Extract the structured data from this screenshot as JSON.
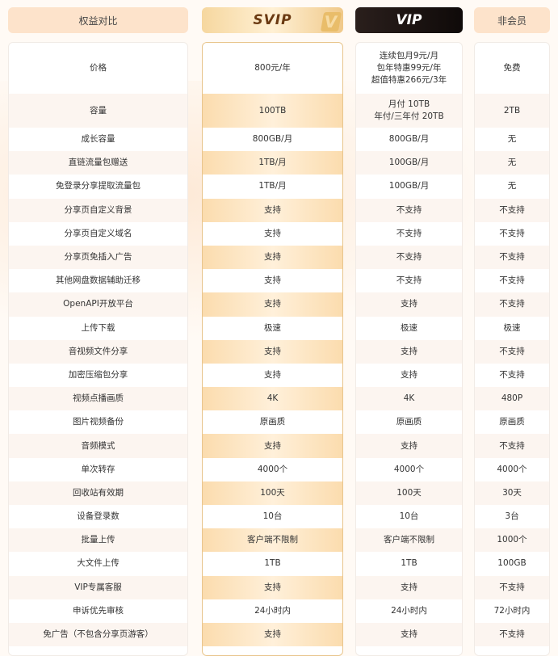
{
  "headers": {
    "features": "权益对比",
    "svip": "SVIP",
    "vip": "VIP",
    "free": "非会员"
  },
  "svip_logo_letter": "V",
  "accent_colors": {
    "svip": "#f6d79f",
    "vip": "#1a1210",
    "header": "#fde3cb"
  },
  "rows": [
    {
      "feature": "价格",
      "svip": "800元/年",
      "vip": "连续包月9元/月\n包年特惠99元/年\n超值特惠266元/3年",
      "free": "免费"
    },
    {
      "feature": "容量",
      "svip": "100TB",
      "vip": "月付 10TB\n年付/三年付 20TB",
      "free": "2TB"
    },
    {
      "feature": "成长容量",
      "svip": "800GB/月",
      "vip": "800GB/月",
      "free": "无"
    },
    {
      "feature": "直链流量包赠送",
      "svip": "1TB/月",
      "vip": "100GB/月",
      "free": "无"
    },
    {
      "feature": "免登录分享提取流量包",
      "svip": "1TB/月",
      "vip": "100GB/月",
      "free": "无"
    },
    {
      "feature": "分享页自定义背景",
      "svip": "支持",
      "vip": "不支持",
      "free": "不支持"
    },
    {
      "feature": "分享页自定义域名",
      "svip": "支持",
      "vip": "不支持",
      "free": "不支持"
    },
    {
      "feature": "分享页免插入广告",
      "svip": "支持",
      "vip": "不支持",
      "free": "不支持"
    },
    {
      "feature": "其他网盘数据辅助迁移",
      "svip": "支持",
      "vip": "不支持",
      "free": "不支持"
    },
    {
      "feature": "OpenAPI开放平台",
      "svip": "支持",
      "vip": "支持",
      "free": "不支持"
    },
    {
      "feature": "上传下载",
      "svip": "极速",
      "vip": "极速",
      "free": "极速"
    },
    {
      "feature": "音视频文件分享",
      "svip": "支持",
      "vip": "支持",
      "free": "不支持"
    },
    {
      "feature": "加密压缩包分享",
      "svip": "支持",
      "vip": "支持",
      "free": "不支持"
    },
    {
      "feature": "视频点播画质",
      "svip": "4K",
      "vip": "4K",
      "free": "480P"
    },
    {
      "feature": "图片视频备份",
      "svip": "原画质",
      "vip": "原画质",
      "free": "原画质"
    },
    {
      "feature": "音频模式",
      "svip": "支持",
      "vip": "支持",
      "free": "不支持"
    },
    {
      "feature": "单次转存",
      "svip": "4000个",
      "vip": "4000个",
      "free": "4000个"
    },
    {
      "feature": "回收站有效期",
      "svip": "100天",
      "vip": "100天",
      "free": "30天"
    },
    {
      "feature": "设备登录数",
      "svip": "10台",
      "vip": "10台",
      "free": "3台"
    },
    {
      "feature": "批量上传",
      "svip": "客户端不限制",
      "vip": "客户端不限制",
      "free": "1000个"
    },
    {
      "feature": "大文件上传",
      "svip": "1TB",
      "vip": "1TB",
      "free": "100GB"
    },
    {
      "feature": "VIP专属客服",
      "svip": "支持",
      "vip": "支持",
      "free": "不支持"
    },
    {
      "feature": "申诉优先审核",
      "svip": "24小时内",
      "vip": "24小时内",
      "free": "72小时内"
    },
    {
      "feature": "免广告（不包含分享页游客）",
      "svip": "支持",
      "vip": "支持",
      "free": "不支持"
    }
  ]
}
